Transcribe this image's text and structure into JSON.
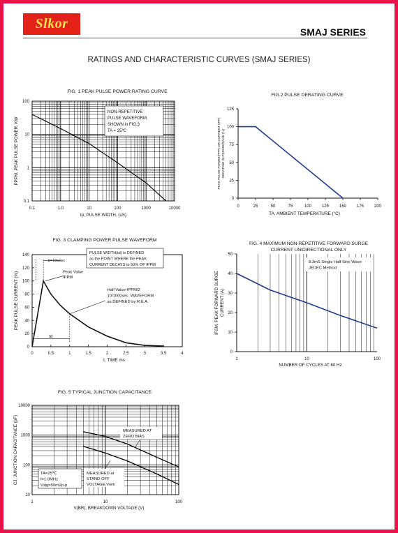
{
  "header": {
    "logo_text": "Slkor",
    "series_label": "SMAJ SERIES",
    "main_title": "RATINGS AND CHARACTERISTIC CURVES (SMAJ SERIES)"
  },
  "colors": {
    "frame": "#e8134a",
    "logo_bg": "#e32119",
    "logo_text": "#f3e14a",
    "curve_blue": "#1f3a93",
    "curve_black": "#111111"
  },
  "chart_data": [
    {
      "id": "fig1",
      "type": "line",
      "title": "FIG. 1 PEAK PULSE POWER RATING CURVE",
      "xlabel": "tp, PULSE WIDTH, (uS)",
      "ylabel": "PPPM, PEAK PULSE POWER, KW",
      "xscale": "log",
      "yscale": "log",
      "xlim": [
        0.1,
        10000
      ],
      "ylim": [
        0.1,
        100
      ],
      "xticks": [
        "0.1",
        "1.0",
        "10",
        "100",
        "1000",
        "10000"
      ],
      "yticks": [
        "0.1",
        "1",
        "10",
        "100"
      ],
      "annotation": [
        "NON-REPETITIVE",
        "PULSE WAVEFORM",
        "SHOWN in FIG.3",
        "TA = 25℃"
      ],
      "series": [
        {
          "x": [
            0.1,
            1,
            10,
            100,
            1000,
            5000
          ],
          "y": [
            40,
            15,
            5.3,
            1.4,
            0.35,
            0.1
          ]
        }
      ],
      "grid": true
    },
    {
      "id": "fig2",
      "type": "line",
      "title": "FIG.2 PULSE DERATING CURVE",
      "xlabel": "TA, AMBIENT TEMPERATURE (°C)",
      "ylabel": "PEAK PULSE POWER(PPP) OR CURRENT (IPP) DERATING IN PERCENTAGE (%)",
      "xlim": [
        0,
        200
      ],
      "ylim": [
        0,
        125
      ],
      "xticks": [
        "0",
        "25",
        "50",
        "75",
        "100",
        "125",
        "150",
        "175",
        "200"
      ],
      "yticks": [
        "0",
        "25",
        "50",
        "75",
        "100",
        "125"
      ],
      "series": [
        {
          "x": [
            0,
            25,
            150
          ],
          "y": [
            100,
            100,
            0
          ]
        }
      ],
      "grid": false
    },
    {
      "id": "fig3",
      "type": "line",
      "title": "FIG. 3 CLAMPING POWER PULSE WAVEFORM",
      "xlabel": "t, TIME ms",
      "ylabel": "PEAK PULSE CURRENT (%)",
      "xlim": [
        0,
        4
      ],
      "ylim": [
        0,
        140
      ],
      "xticks": [
        "0",
        "0.5",
        "1",
        "1.5",
        "2",
        "2.5",
        "3",
        "3.5",
        "4"
      ],
      "yticks": [
        "0",
        "20",
        "40",
        "60",
        "80",
        "100",
        "120",
        "140"
      ],
      "annotations": {
        "tr": "tr=10usec",
        "pulse_width": [
          "PULSE WIDTH(td) is DEFINED",
          "as the POINT WHERE the PEAK",
          "CURRENT DECAYS to 50% OF IPPM"
        ],
        "peak": [
          "Peak Value",
          "IPPM"
        ],
        "half": [
          "Half Value-IPPM/2",
          "10/1000sec. WAVEFORM",
          "as DEFINED by R.E.A."
        ],
        "td": "td"
      },
      "series": [
        {
          "x": [
            0,
            0.3,
            0.5,
            0.75,
            1,
            1.5,
            2,
            2.5,
            3,
            3.5
          ],
          "y": [
            0,
            100,
            80,
            63,
            50,
            30,
            16,
            6,
            2,
            1
          ]
        }
      ],
      "grid": false
    },
    {
      "id": "fig4",
      "type": "line",
      "title": "FIG. 4 MAXIMUM NON-REPETITIVE FORWARD SURGE CURRENT UNIDIRECTIONAL ONLY",
      "title_lines": [
        "FIG. 4 MAXIMUM NON-REPETITIVE FORWARD SURGE",
        "CURRENT UNIDIRECTIONAL ONLY"
      ],
      "xlabel": "NUMBER OF CYCLES AT 60 Hz",
      "ylabel": "IFSM, PEAK FORWARD SURGE CURRENT (A)",
      "ylabel_lines": [
        "IFSM, PEAK FORWARD SURGE",
        "CURRENT (A)"
      ],
      "xscale": "log",
      "xlim": [
        1,
        100
      ],
      "ylim": [
        0,
        50
      ],
      "xticks": [
        "1",
        "10",
        "100"
      ],
      "yticks": [
        "0",
        "10",
        "20",
        "30",
        "40",
        "50"
      ],
      "annotation": [
        "8.3mS Single Half Sine Wave",
        "JEDEC Method"
      ],
      "series": [
        {
          "x": [
            1,
            3,
            10,
            30,
            100
          ],
          "y": [
            40,
            31.5,
            25,
            18.5,
            12
          ]
        }
      ],
      "grid": true
    },
    {
      "id": "fig5",
      "type": "line",
      "title": "FIG. 5 TYPICAL JUNCTION CAPACITANCE",
      "xlabel": "V(BR), BREAKDOWN VOLTAGE (V)",
      "ylabel": "CJ, JUNCTION CAPACITANCE (pF)",
      "xscale": "log",
      "yscale": "log",
      "xlim": [
        1,
        100
      ],
      "ylim": [
        10,
        10000
      ],
      "xticks": [
        "1",
        "10",
        "100"
      ],
      "yticks": [
        "10",
        "100",
        "1000",
        "10000"
      ],
      "conditions": [
        "TA=25℃",
        "f=1.0MHz",
        "Vsig=50mVp-p"
      ],
      "series": [
        {
          "name": "MEASURED AT ZERO BIAS",
          "label_lines": [
            "MEASURED AT",
            "ZERO BIAS"
          ],
          "x": [
            5,
            10,
            20,
            50,
            100
          ],
          "y": [
            1300,
            900,
            500,
            180,
            85
          ]
        },
        {
          "name": "MEASURED AT STAND-OFF VOLTAGE,Vwm",
          "label_lines": [
            "MEASURED at",
            "STAND-OFF",
            "VOLTAGE,Vwm"
          ],
          "x": [
            5,
            10,
            20,
            50,
            100
          ],
          "y": [
            420,
            250,
            135,
            50,
            22
          ]
        }
      ],
      "grid": true
    }
  ]
}
